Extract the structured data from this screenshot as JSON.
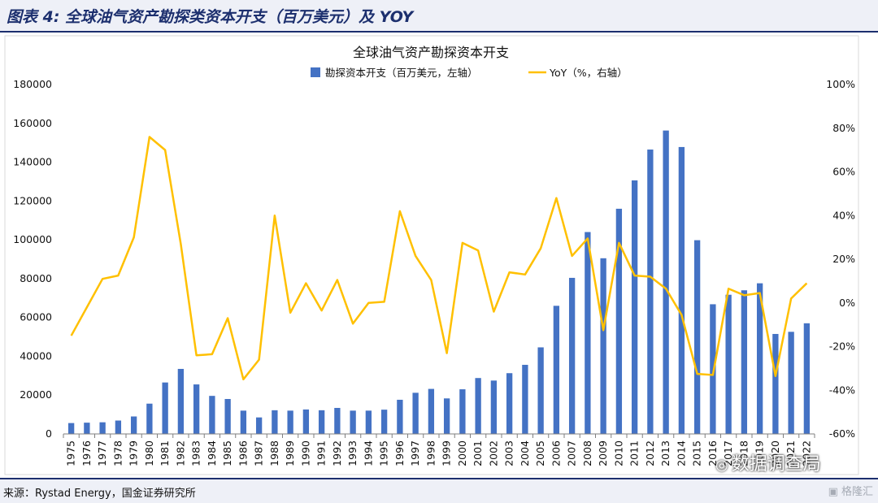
{
  "figure": {
    "caption": "图表 4: 全球油气资产勘探类资本开支（百万美元）及 YOY",
    "source": "来源：Rystad Energy，国金证券研究所",
    "watermark_account": "数据调查局",
    "watermark_brand": "格隆汇"
  },
  "chart_data": {
    "type": "bar+line",
    "title": "全球油气资产勘探资本开支",
    "categories": [
      "1975",
      "1976",
      "1977",
      "1978",
      "1979",
      "1980",
      "1981",
      "1982",
      "1983",
      "1984",
      "1985",
      "1986",
      "1987",
      "1988",
      "1989",
      "1990",
      "1991",
      "1992",
      "1993",
      "1994",
      "1995",
      "1996",
      "1997",
      "1998",
      "1999",
      "2000",
      "2001",
      "2002",
      "2003",
      "2004",
      "2005",
      "2006",
      "2007",
      "2008",
      "2009",
      "2010",
      "2011",
      "2012",
      "2013",
      "2014",
      "2015",
      "2016",
      "2017",
      "2018",
      "2019",
      "2020",
      "2021",
      "2022"
    ],
    "series": [
      {
        "name": "勘探资本开支（百万美元，左轴）",
        "type": "bar",
        "axis": "left",
        "color": "#4472c4",
        "values": [
          5600,
          5800,
          6000,
          6900,
          9000,
          15600,
          26500,
          33500,
          25500,
          19600,
          18000,
          12000,
          8500,
          12200,
          12000,
          12600,
          12200,
          13400,
          12000,
          12000,
          12500,
          17600,
          21200,
          23200,
          18300,
          23000,
          28800,
          27500,
          31300,
          35600,
          44600,
          66000,
          80400,
          104000,
          90500,
          116000,
          130600,
          146500,
          156300,
          147800,
          99800,
          66800,
          71700,
          74000,
          77600,
          51500,
          52600,
          57000
        ]
      },
      {
        "name": "YoY（%，右轴）",
        "type": "line",
        "axis": "right",
        "color": "#ffc000",
        "values": [
          -15,
          -2,
          11,
          12.5,
          30,
          76,
          70,
          27,
          -24,
          -23.5,
          -7,
          -35,
          -26,
          40,
          -4.5,
          9,
          -3.5,
          10.5,
          -9.5,
          0,
          0.5,
          42,
          21.5,
          10.5,
          -23,
          27.5,
          24,
          -4,
          14,
          13,
          25,
          48,
          21.5,
          29.5,
          -12.5,
          27.5,
          12.5,
          12,
          6.5,
          -5.5,
          -32.5,
          -33,
          6.5,
          3.5,
          4.5,
          -33.5,
          2,
          9
        ]
      }
    ],
    "left_axis": {
      "min": 0,
      "max": 180000,
      "step": 20000,
      "ticks": [
        "0",
        "20000",
        "40000",
        "60000",
        "80000",
        "100000",
        "120000",
        "140000",
        "160000",
        "180000"
      ]
    },
    "right_axis": {
      "min": -60,
      "max": 100,
      "step": 20,
      "ticks": [
        "-60%",
        "-40%",
        "-20%",
        "0%",
        "20%",
        "40%",
        "60%",
        "80%",
        "100%"
      ]
    },
    "grid": false,
    "legend_position": "top-center"
  }
}
